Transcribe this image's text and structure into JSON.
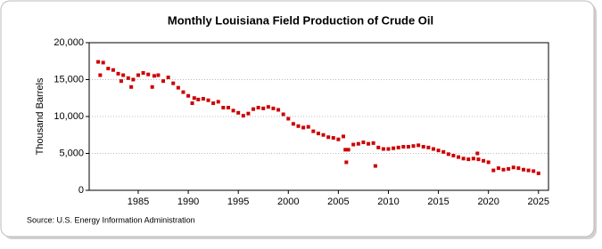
{
  "chart_data": {
    "type": "scatter",
    "title": "Monthly Louisiana Field Production of Crude Oil",
    "y_label": "Thousand Barrels",
    "source": "Source: U.S. Energy Information Administration",
    "color": "#cc0000",
    "grid": true,
    "xlim": [
      1980.1,
      2026
    ],
    "xticks": [
      1985,
      1990,
      1995,
      2000,
      2005,
      2010,
      2015,
      2020,
      2025
    ],
    "ylim": [
      0,
      20000
    ],
    "yticks": [
      0,
      {
        "value": 5000,
        "label": "5,000"
      },
      {
        "value": 10000,
        "label": "10,000"
      },
      {
        "value": 15000,
        "label": "15,000"
      },
      {
        "value": 20000,
        "label": "20,000"
      }
    ],
    "x": [
      1981.0,
      1981.2,
      1981.5,
      1982.0,
      1982.5,
      1983.0,
      1983.3,
      1983.5,
      1984.0,
      1984.3,
      1984.5,
      1985.0,
      1985.5,
      1986.0,
      1986.4,
      1986.6,
      1987.0,
      1987.5,
      1988.0,
      1988.5,
      1989.0,
      1989.5,
      1990.0,
      1990.4,
      1990.6,
      1991.0,
      1991.5,
      1992.0,
      1992.5,
      1993.0,
      1993.5,
      1994.0,
      1994.5,
      1995.0,
      1995.5,
      1996.0,
      1996.5,
      1997.0,
      1997.5,
      1998.0,
      1998.5,
      1999.0,
      1999.5,
      2000.0,
      2000.5,
      2001.0,
      2001.5,
      2002.0,
      2002.5,
      2003.0,
      2003.5,
      2004.0,
      2004.5,
      2005.0,
      2005.5,
      2005.7,
      2005.8,
      2006.0,
      2006.5,
      2007.0,
      2007.5,
      2008.0,
      2008.5,
      2008.7,
      2009.0,
      2009.5,
      2010.0,
      2010.5,
      2011.0,
      2011.5,
      2012.0,
      2012.5,
      2013.0,
      2013.5,
      2014.0,
      2014.5,
      2015.0,
      2015.5,
      2016.0,
      2016.5,
      2017.0,
      2017.5,
      2018.0,
      2018.5,
      2018.9,
      2019.0,
      2019.5,
      2020.0,
      2020.5,
      2021.0,
      2021.5,
      2022.0,
      2022.5,
      2023.0,
      2023.5,
      2024.0,
      2024.5,
      2025.0
    ],
    "values": [
      17400,
      15600,
      17300,
      16500,
      16300,
      15800,
      14800,
      15600,
      15200,
      14000,
      15000,
      15600,
      15900,
      15700,
      14000,
      15500,
      15600,
      14800,
      15300,
      14500,
      13900,
      13300,
      12800,
      11800,
      12500,
      12300,
      12400,
      12200,
      11800,
      12000,
      11200,
      11200,
      10800,
      10500,
      10100,
      10400,
      11000,
      11200,
      11100,
      11300,
      11100,
      10900,
      10300,
      9700,
      9000,
      8700,
      8500,
      8600,
      8000,
      7700,
      7500,
      7200,
      7100,
      6900,
      7300,
      5500,
      3800,
      5500,
      6200,
      6300,
      6500,
      6300,
      6400,
      3300,
      5800,
      5600,
      5600,
      5700,
      5800,
      5900,
      5900,
      6000,
      6100,
      5900,
      5800,
      5600,
      5400,
      5200,
      4900,
      4700,
      4500,
      4300,
      4200,
      4300,
      5000,
      4200,
      4000,
      3800,
      2700,
      3000,
      2800,
      2900,
      3100,
      3000,
      2800,
      2700,
      2600,
      2300
    ]
  }
}
